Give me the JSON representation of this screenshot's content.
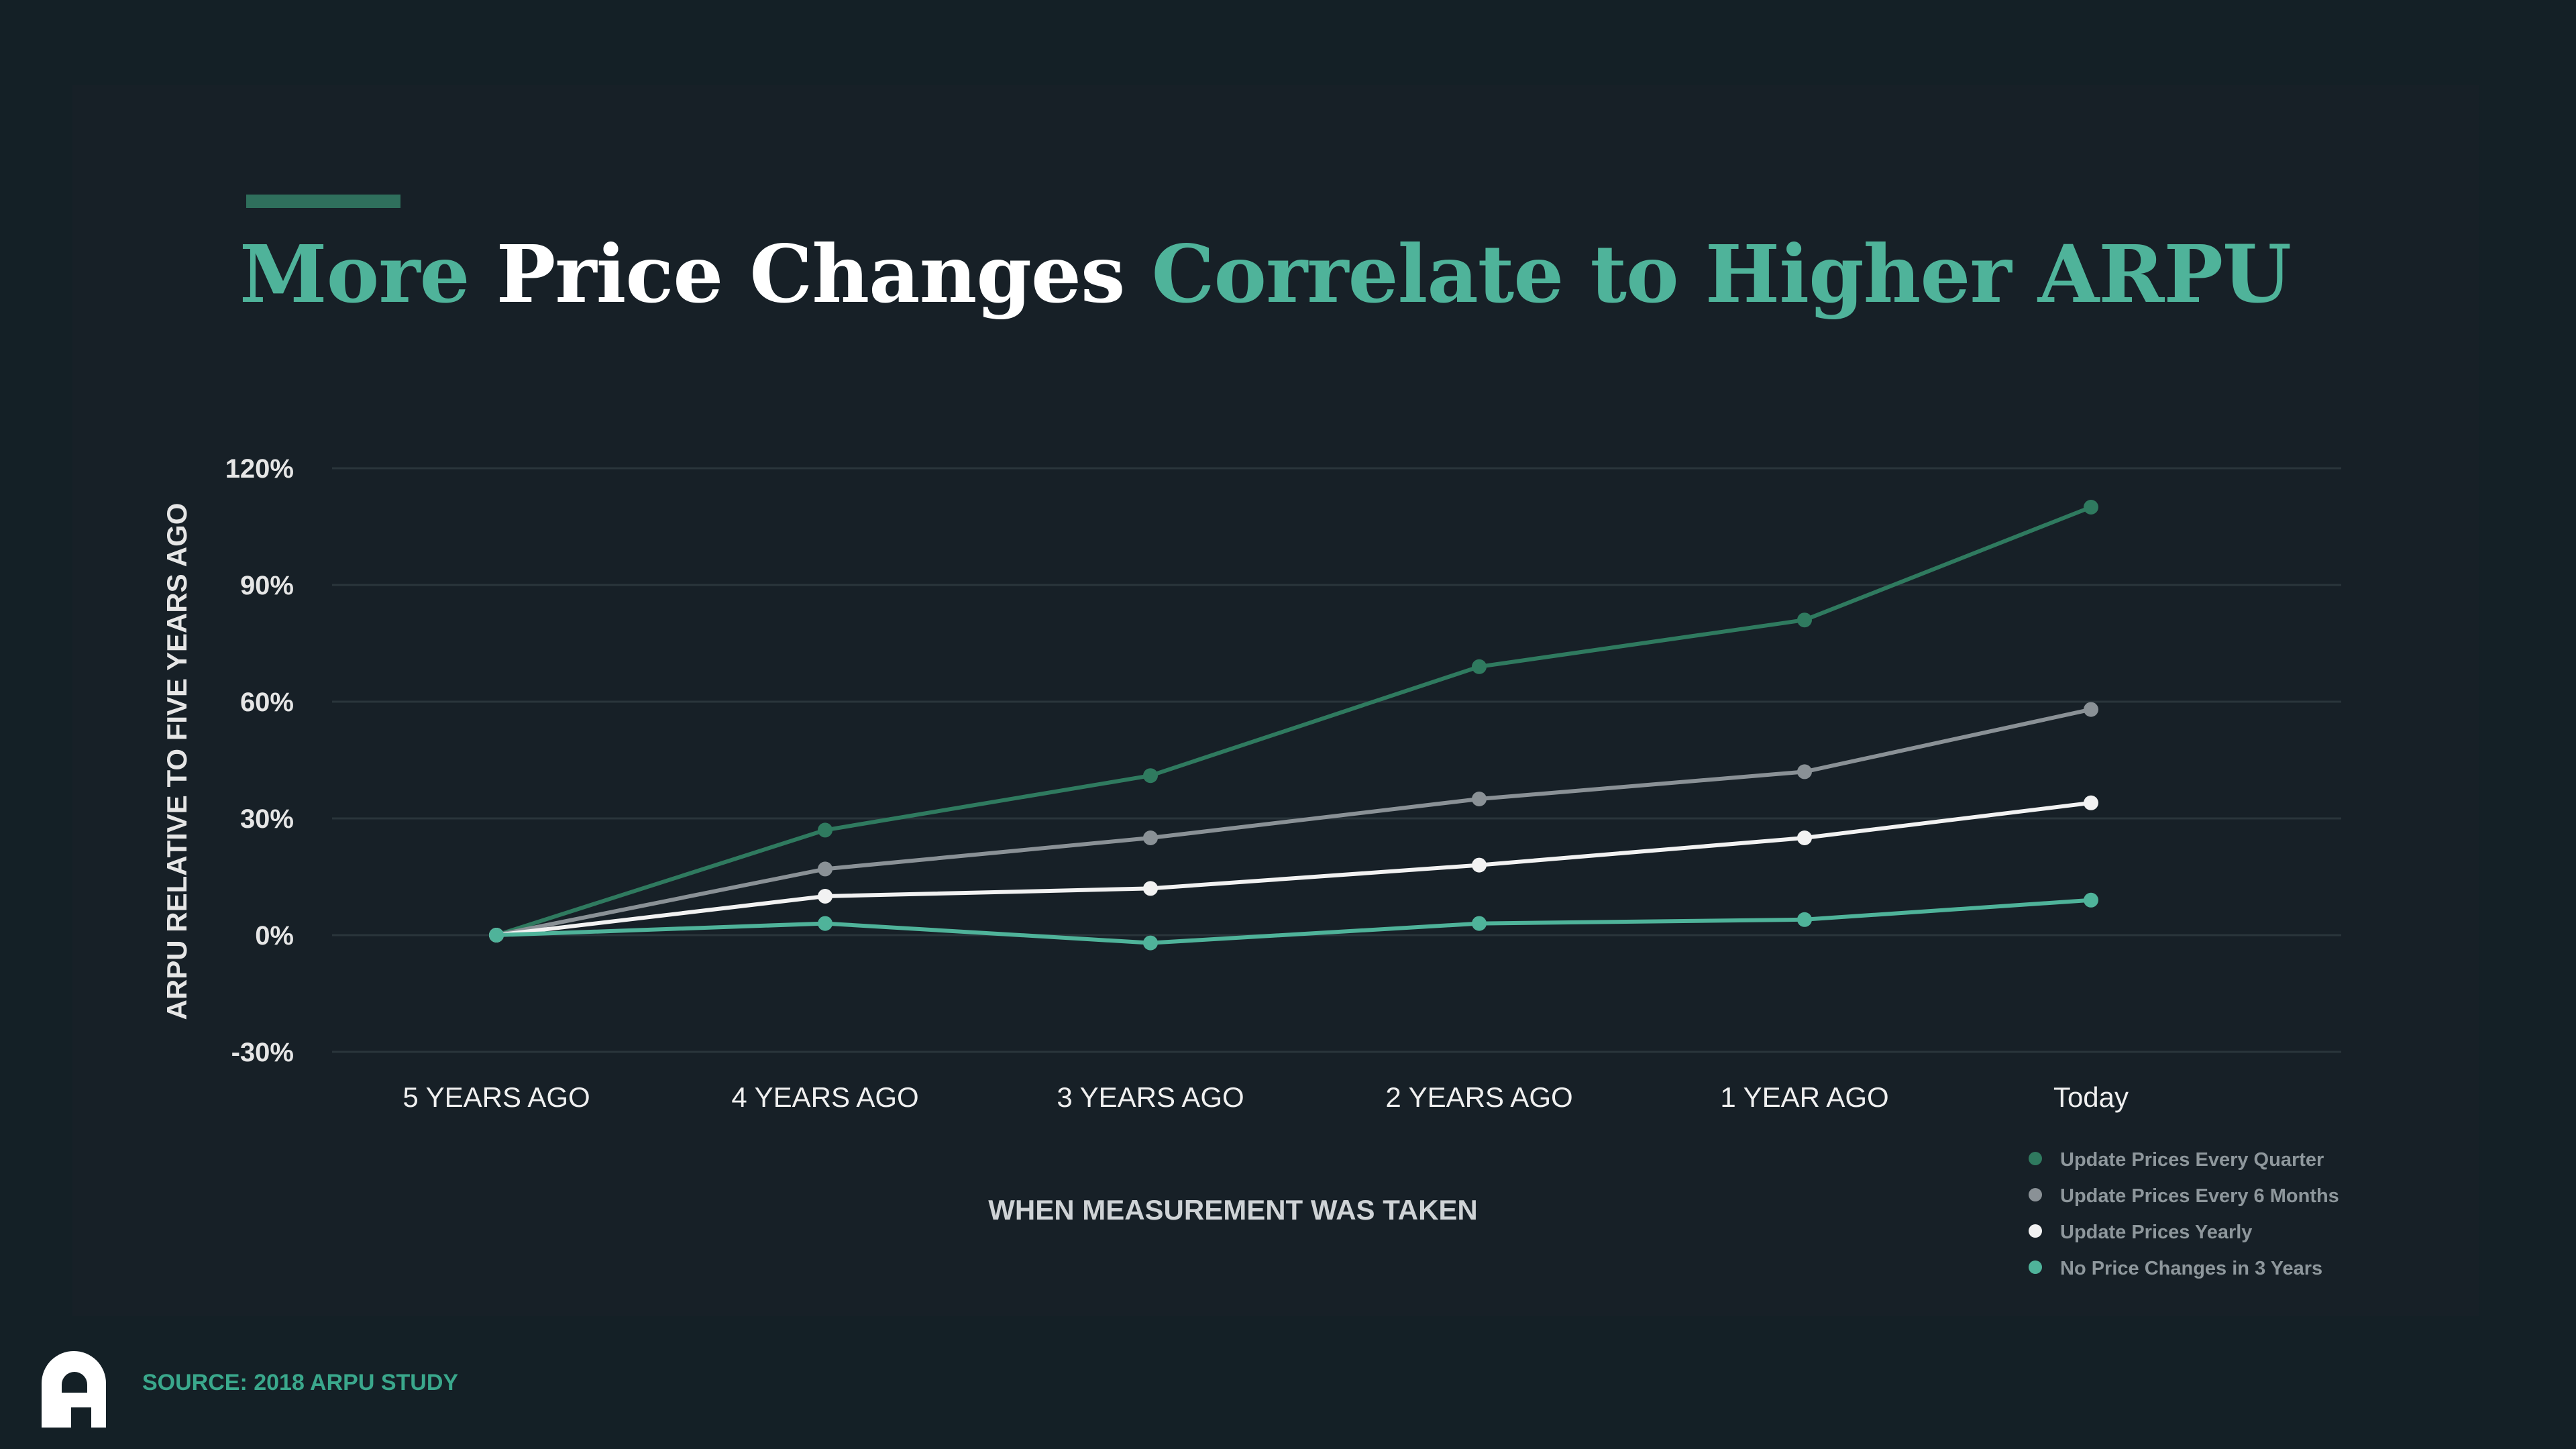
{
  "title": {
    "part1": "More",
    "part2": "Price Changes",
    "part3": "Correlate to Higher ARPU"
  },
  "colors": {
    "accent": "#4fb39a",
    "background": "#172027",
    "grid": "#2a353b",
    "text": "#e6e6e6",
    "muted": "#9aa3a8"
  },
  "chart_data": {
    "type": "line",
    "title": "More Price Changes Correlate to Higher ARPU",
    "xlabel": "WHEN MEASUREMENT WAS TAKEN",
    "ylabel": "ARPU RELATIVE TO FIVE YEARS AGO",
    "categories": [
      "5 YEARS AGO",
      "4 YEARS AGO",
      "3 YEARS AGO",
      "2 YEARS AGO",
      "1 YEAR AGO",
      "Today"
    ],
    "y_ticks": [
      120,
      90,
      60,
      30,
      0,
      -30
    ],
    "y_tick_labels": [
      "120%",
      "90%",
      "60%",
      "30%",
      "0%",
      "-30%"
    ],
    "ylim": [
      -30,
      120
    ],
    "grid": true,
    "legend_position": "bottom-right",
    "series": [
      {
        "name": "Update Prices Every Quarter",
        "color": "#2f7a5f",
        "values": [
          0,
          27,
          41,
          69,
          81,
          110
        ]
      },
      {
        "name": "Update Prices Every 6 Months",
        "color": "#8a9196",
        "values": [
          0,
          17,
          25,
          35,
          42,
          58
        ]
      },
      {
        "name": "Update Prices Yearly",
        "color": "#f2f2f2",
        "values": [
          0,
          10,
          12,
          18,
          25,
          34
        ]
      },
      {
        "name": "No Price Changes in 3 Years",
        "color": "#4fb39a",
        "values": [
          0,
          3,
          -2,
          3,
          4,
          9
        ]
      }
    ]
  },
  "source": {
    "text": "SOURCE: 2018 ARPU STUDY",
    "logo_icon": "company-logo-icon"
  }
}
